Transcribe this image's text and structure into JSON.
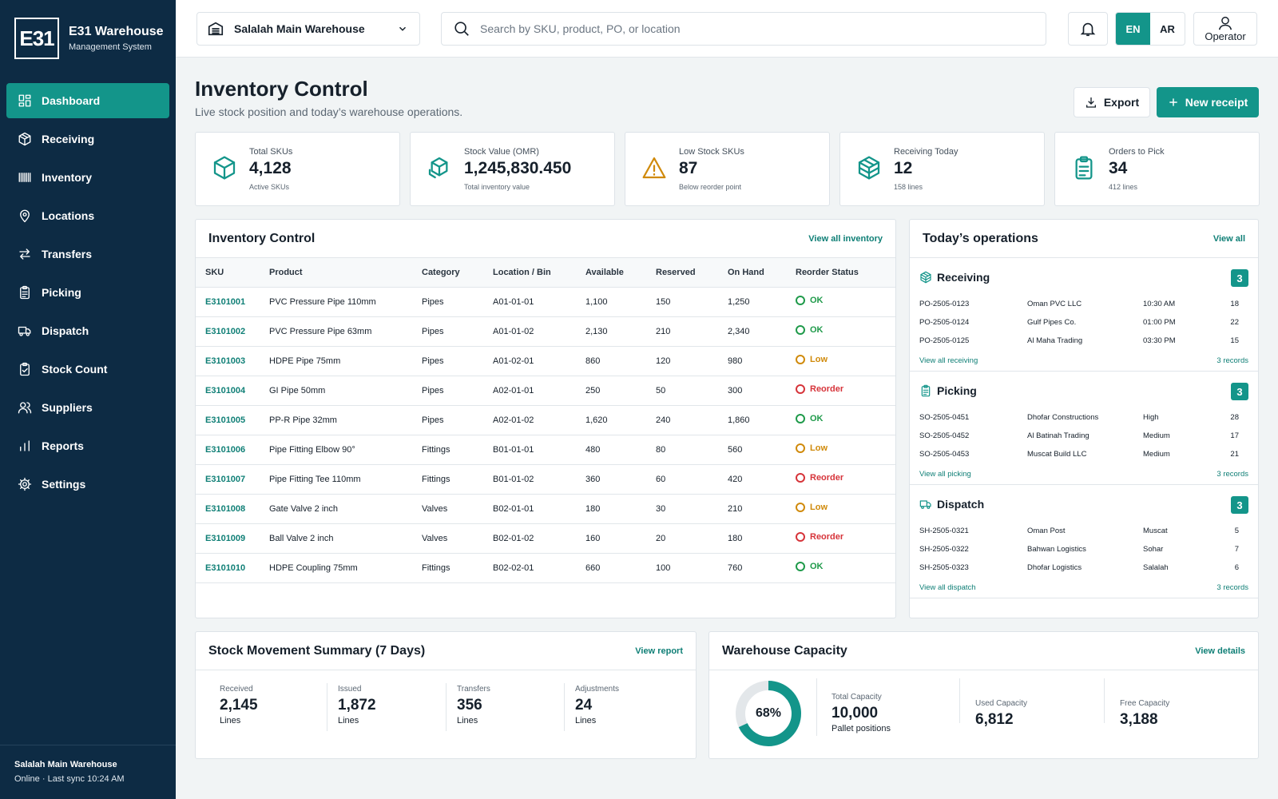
{
  "brand": {
    "logo_text": "E31",
    "title": "E31 Warehouse",
    "subtitle": "Management System"
  },
  "nav": [
    {
      "label": "Dashboard",
      "icon": "dashboard-icon",
      "active": true
    },
    {
      "label": "Receiving",
      "icon": "box-icon"
    },
    {
      "label": "Inventory",
      "icon": "barcode-icon"
    },
    {
      "label": "Locations",
      "icon": "map-pin-icon"
    },
    {
      "label": "Transfers",
      "icon": "transfer-arrows-icon"
    },
    {
      "label": "Picking",
      "icon": "clipboard-icon"
    },
    {
      "label": "Dispatch",
      "icon": "truck-icon"
    },
    {
      "label": "Stock Count",
      "icon": "clipboard-check-icon"
    },
    {
      "label": "Suppliers",
      "icon": "users-icon"
    },
    {
      "label": "Reports",
      "icon": "bar-chart-icon"
    },
    {
      "label": "Settings",
      "icon": "gear-icon"
    }
  ],
  "sidebar_footer": {
    "warehouse": "Salalah Main Warehouse",
    "status": "Online · Last sync 10:24 AM"
  },
  "topbar": {
    "warehouse_select": "Salalah Main Warehouse",
    "search_placeholder": "Search by SKU, product, PO, or location",
    "lang_en": "EN",
    "lang_ar": "AR",
    "user_label": "Operator"
  },
  "page": {
    "title": "Inventory Control",
    "subtitle": "Live stock position and today’s warehouse operations.",
    "export_label": "Export",
    "new_receipt_label": "New receipt"
  },
  "kpis": [
    {
      "label": "Total SKUs",
      "value": "4,128",
      "sub": "Active SKUs",
      "icon": "cube-icon",
      "color": "#13958a"
    },
    {
      "label": "Stock Value (OMR)",
      "value": "1,245,830.450",
      "sub": "Total inventory value",
      "icon": "boxes-icon",
      "color": "#13958a"
    },
    {
      "label": "Low Stock SKUs",
      "value": "87",
      "sub": "Below reorder point",
      "icon": "warning-icon",
      "color": "#d08a0b"
    },
    {
      "label": "Receiving Today",
      "value": "12",
      "sub": "158 lines",
      "icon": "package-icon",
      "color": "#13958a"
    },
    {
      "label": "Orders to Pick",
      "value": "34",
      "sub": "412 lines",
      "icon": "clipboard-icon",
      "color": "#13958a"
    }
  ],
  "inventory": {
    "title": "Inventory Control",
    "link": "View all inventory",
    "columns": [
      "SKU",
      "Product",
      "Category",
      "Location / Bin",
      "Available",
      "Reserved",
      "On Hand",
      "Reorder Status"
    ],
    "rows": [
      {
        "sku": "E3101001",
        "product": "PVC Pressure Pipe 110mm",
        "category": "Pipes",
        "bin": "A01-01-01",
        "available": "1,100",
        "reserved": "150",
        "on_hand": "1,250",
        "status": "OK",
        "status_type": "ok"
      },
      {
        "sku": "E3101002",
        "product": "PVC Pressure Pipe 63mm",
        "category": "Pipes",
        "bin": "A01-01-02",
        "available": "2,130",
        "reserved": "210",
        "on_hand": "2,340",
        "status": "OK",
        "status_type": "ok"
      },
      {
        "sku": "E3101003",
        "product": "HDPE Pipe 75mm",
        "category": "Pipes",
        "bin": "A01-02-01",
        "available": "860",
        "reserved": "120",
        "on_hand": "980",
        "status": "Low",
        "status_type": "low"
      },
      {
        "sku": "E3101004",
        "product": "GI Pipe 50mm",
        "category": "Pipes",
        "bin": "A02-01-01",
        "available": "250",
        "reserved": "50",
        "on_hand": "300",
        "status": "Reorder",
        "status_type": "reorder"
      },
      {
        "sku": "E3101005",
        "product": "PP-R Pipe 32mm",
        "category": "Pipes",
        "bin": "A02-01-02",
        "available": "1,620",
        "reserved": "240",
        "on_hand": "1,860",
        "status": "OK",
        "status_type": "ok"
      },
      {
        "sku": "E3101006",
        "product": "Pipe Fitting Elbow 90°",
        "category": "Fittings",
        "bin": "B01-01-01",
        "available": "480",
        "reserved": "80",
        "on_hand": "560",
        "status": "Low",
        "status_type": "low"
      },
      {
        "sku": "E3101007",
        "product": "Pipe Fitting Tee 110mm",
        "category": "Fittings",
        "bin": "B01-01-02",
        "available": "360",
        "reserved": "60",
        "on_hand": "420",
        "status": "Reorder",
        "status_type": "reorder"
      },
      {
        "sku": "E3101008",
        "product": "Gate Valve 2 inch",
        "category": "Valves",
        "bin": "B02-01-01",
        "available": "180",
        "reserved": "30",
        "on_hand": "210",
        "status": "Low",
        "status_type": "low"
      },
      {
        "sku": "E3101009",
        "product": "Ball Valve 2 inch",
        "category": "Valves",
        "bin": "B02-01-02",
        "available": "160",
        "reserved": "20",
        "on_hand": "180",
        "status": "Reorder",
        "status_type": "reorder"
      },
      {
        "sku": "E3101010",
        "product": "HDPE Coupling 75mm",
        "category": "Fittings",
        "bin": "B02-02-01",
        "available": "660",
        "reserved": "100",
        "on_hand": "760",
        "status": "OK",
        "status_type": "ok"
      }
    ]
  },
  "operations": {
    "title": "Today’s operations",
    "link": "View all",
    "sections": [
      {
        "title": "Receiving",
        "icon": "package-icon",
        "count": "3",
        "rows": [
          {
            "id": "PO-2505-0123",
            "party": "Oman PVC LLC",
            "meta": "10:30 AM",
            "qty": "18"
          },
          {
            "id": "PO-2505-0124",
            "party": "Gulf Pipes Co.",
            "meta": "01:00 PM",
            "qty": "22"
          },
          {
            "id": "PO-2505-0125",
            "party": "Al Maha Trading",
            "meta": "03:30 PM",
            "qty": "15"
          }
        ],
        "footer_link": "View all receiving",
        "footer_count": "3 records"
      },
      {
        "title": "Picking",
        "icon": "clipboard-icon",
        "count": "3",
        "rows": [
          {
            "id": "SO-2505-0451",
            "party": "Dhofar Constructions",
            "meta": "High",
            "qty": "28"
          },
          {
            "id": "SO-2505-0452",
            "party": "Al Batinah Trading",
            "meta": "Medium",
            "qty": "17"
          },
          {
            "id": "SO-2505-0453",
            "party": "Muscat Build LLC",
            "meta": "Medium",
            "qty": "21"
          }
        ],
        "footer_link": "View all picking",
        "footer_count": "3 records"
      },
      {
        "title": "Dispatch",
        "icon": "truck-icon",
        "count": "3",
        "rows": [
          {
            "id": "SH-2505-0321",
            "party": "Oman Post",
            "meta": "Muscat",
            "qty": "5"
          },
          {
            "id": "SH-2505-0322",
            "party": "Bahwan Logistics",
            "meta": "Sohar",
            "qty": "7"
          },
          {
            "id": "SH-2505-0323",
            "party": "Dhofar Logistics",
            "meta": "Salalah",
            "qty": "6"
          }
        ],
        "footer_link": "View all dispatch",
        "footer_count": "3 records"
      }
    ]
  },
  "movement": {
    "title": "Stock Movement Summary (7 Days)",
    "link": "View report",
    "metrics": [
      {
        "label": "Received",
        "value": "2,145",
        "unit": "Lines"
      },
      {
        "label": "Issued",
        "value": "1,872",
        "unit": "Lines"
      },
      {
        "label": "Transfers",
        "value": "356",
        "unit": "Lines"
      },
      {
        "label": "Adjustments",
        "value": "24",
        "unit": "Lines"
      }
    ]
  },
  "capacity": {
    "title": "Warehouse Capacity",
    "link": "View details",
    "used_percent": 68,
    "percent_label": "68%",
    "total_label": "Total Capacity",
    "total_value": "10,000",
    "total_unit": "Pallet positions",
    "used_label": "Used Capacity",
    "used_value": "6,812",
    "free_label": "Free Capacity",
    "free_value": "3,188"
  },
  "colors": {
    "primary": "#13958a",
    "sidebar": "#0d2b44",
    "ok": "#1f9a4a",
    "low": "#d08a0b",
    "reorder": "#d6343a"
  }
}
